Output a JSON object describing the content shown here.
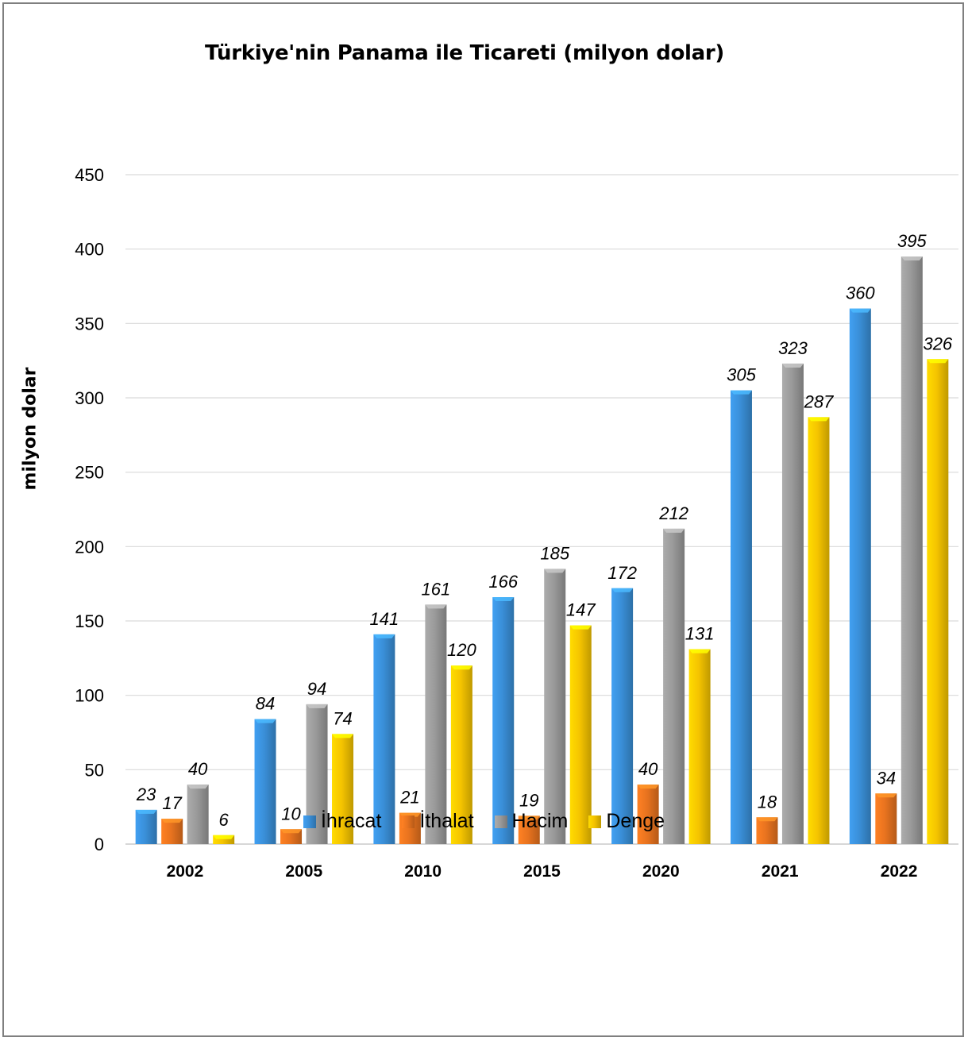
{
  "chart_data": {
    "type": "bar",
    "title": "Türkiye'nin Panama ile Ticareti (milyon dolar)",
    "ylabel": "milyon dolar",
    "xlabel": "",
    "ylim": [
      0,
      450
    ],
    "yticks": [
      0,
      50,
      100,
      150,
      200,
      250,
      300,
      350,
      400,
      450
    ],
    "grid": true,
    "legend_position": "bottom",
    "categories": [
      "2002",
      "2005",
      "2010",
      "2015",
      "2020",
      "2021",
      "2022"
    ],
    "series": [
      {
        "name": "İhracat",
        "color": "#3a8fd8",
        "values": [
          23,
          84,
          141,
          166,
          172,
          305,
          360
        ]
      },
      {
        "name": "İthalat",
        "color": "#e8731f",
        "values": [
          17,
          10,
          21,
          19,
          40,
          18,
          34
        ]
      },
      {
        "name": "Hacim",
        "color": "#9a9a9a",
        "values": [
          40,
          94,
          161,
          185,
          212,
          323,
          395
        ]
      },
      {
        "name": "Denge",
        "color": "#f5c400",
        "values": [
          6,
          74,
          120,
          147,
          131,
          287,
          326
        ]
      }
    ]
  }
}
